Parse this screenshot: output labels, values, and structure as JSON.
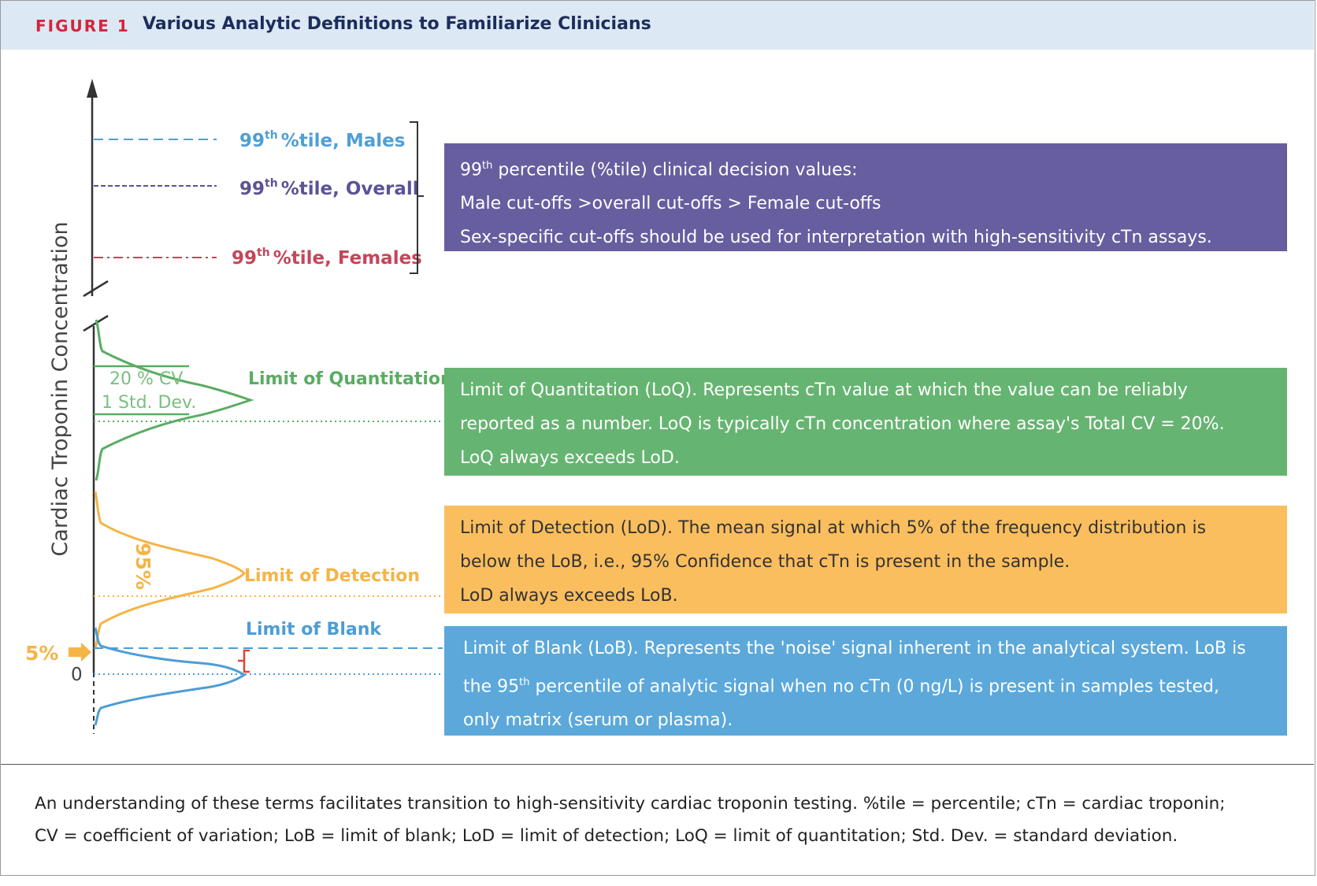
{
  "figure": {
    "label": "FIGURE 1",
    "title": "Various Analytic Definitions to Familiarize Clinicians"
  },
  "axis": {
    "label": "Cardiac Troponin Concentration",
    "zero_label": "0"
  },
  "thresholds": {
    "males": {
      "num": "99",
      "sup": "th",
      "text": "%tile, Males",
      "color": "#4f9fd6"
    },
    "overall": {
      "num": "99",
      "sup": "th",
      "text": "%tile, Overall",
      "color": "#5b5396"
    },
    "females": {
      "num": "99",
      "sup": "th",
      "text": "%tile, Females",
      "color": "#c4465a"
    }
  },
  "limits": {
    "quantitation": {
      "label": "Limit of Quantitation",
      "cv_label": "20 % CV",
      "sd_label": "1 Std. Dev.",
      "color": "#5aac63"
    },
    "detection": {
      "label": "Limit of Detection",
      "pct_label": "95%",
      "color": "#f5b446"
    },
    "blank": {
      "label": "Limit of Blank",
      "color": "#4c9dd5"
    },
    "five_pct_label": "5%"
  },
  "boxes": {
    "percentile": {
      "line1_num": "99",
      "line1_sup": "th",
      "line1_rest": "percentile (%tile) clinical decision values:",
      "line2": "Male cut-offs >overall cut-offs > Female cut-offs",
      "line3": "Sex-specific cut-offs should be used for interpretation with high-sensitivity cTn assays."
    },
    "loq": {
      "line1": "Limit of Quantitation (LoQ). Represents cTn value at which the value can be reliably",
      "line2": "reported as a number. LoQ is typically cTn concentration where assay's Total CV = 20%.",
      "line3": "LoQ always exceeds LoD."
    },
    "lod": {
      "line1": "Limit of Detection (LoD). The mean signal at which 5% of the frequency distribution is",
      "line2": "below the LoB, i.e., 95% Confidence that cTn is present in the sample.",
      "line3": "LoD always exceeds LoB."
    },
    "lob": {
      "line1": "Limit of Blank (LoB). Represents the 'noise' signal inherent in the analytical system. LoB is",
      "line2_pre": "the 95",
      "line2_sup": "th",
      "line2_post": "percentile of analytic signal when no cTn (0 ng/L) is present in samples tested,",
      "line3": "only matrix (serum or plasma)."
    }
  },
  "caption": {
    "line1": "An understanding of these terms facilitates transition to high-sensitivity cardiac troponin testing. %tile = percentile; cTn = cardiac troponin;",
    "line2": "CV = coefficient of variation; LoB = limit of blank; LoD = limit of detection; LoQ = limit of quantitation; Std. Dev. = standard deviation."
  }
}
